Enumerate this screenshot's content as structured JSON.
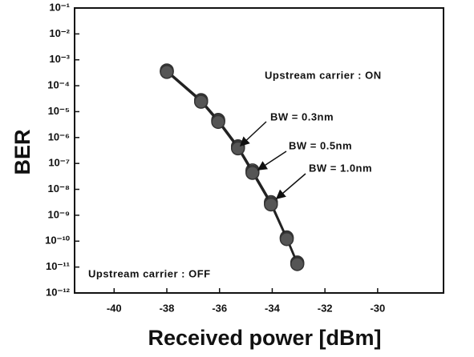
{
  "chart_data": {
    "type": "line",
    "xlabel": "Received power [dBm]",
    "ylabel": "BER",
    "xlim": [
      -41.5,
      -27.5
    ],
    "xticks": [
      -40,
      -38,
      -36,
      -34,
      -32,
      -30
    ],
    "ylim": [
      1e-12,
      0.1
    ],
    "log_y": true,
    "yticks": [
      {
        "value": 1e-12,
        "label": "10⁻¹²"
      },
      {
        "value": 1e-11,
        "label": "10⁻¹¹"
      },
      {
        "value": 1e-10,
        "label": "10⁻¹⁰"
      },
      {
        "value": 1e-09,
        "label": "10⁻⁹"
      },
      {
        "value": 1e-08,
        "label": "10⁻⁸"
      },
      {
        "value": 1e-07,
        "label": "10⁻⁷"
      },
      {
        "value": 1e-06,
        "label": "10⁻⁶"
      },
      {
        "value": 1e-05,
        "label": "10⁻⁵"
      },
      {
        "value": 0.0001,
        "label": "10⁻⁴"
      },
      {
        "value": 0.001,
        "label": "10⁻³"
      },
      {
        "value": 0.01,
        "label": "10⁻²"
      },
      {
        "value": 0.1,
        "label": "10⁻¹"
      }
    ],
    "x": [
      -38.0,
      -36.7,
      -36.05,
      -35.3,
      -34.75,
      -34.05,
      -33.45,
      -33.05
    ],
    "series": [
      {
        "name": "BW = 0.3nm",
        "color": "#e8e8e8",
        "values": [
          0.00039,
          2.8e-05,
          4.8e-06,
          4.6e-07,
          5.4e-08,
          3.2e-09,
          1.4e-10,
          1.5e-11
        ]
      },
      {
        "name": "BW = 0.5nm",
        "color": "#b0b0b0",
        "values": [
          0.00036,
          2.6e-05,
          4.4e-06,
          4.2e-07,
          4.8e-08,
          2.9e-09,
          1.3e-10,
          1.4e-11
        ]
      },
      {
        "name": "BW = 1.0nm",
        "color": "#555555",
        "values": [
          0.00034,
          2.4e-05,
          4e-06,
          3.8e-07,
          4.3e-08,
          2.6e-09,
          1.2e-10,
          1.3e-11
        ]
      }
    ],
    "annotations": [
      "Upstream carrier : ON",
      "Upstream carrier : OFF"
    ]
  }
}
